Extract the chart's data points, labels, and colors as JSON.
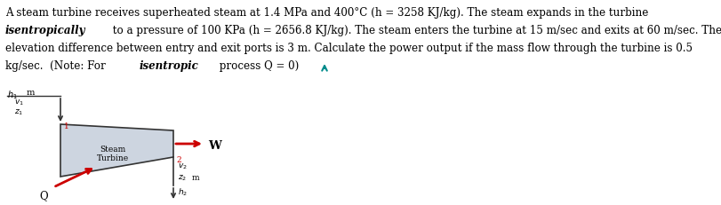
{
  "line1": "A steam turbine receives superheated steam at 1.4 MPa and 400°C (h = 3258 KJ/kg). The steam expands in the turbine",
  "line2_before": "isentropically to a pressure of 100 KPa (h = 2656.8 KJ/kg). The steam enters the turbine at 15 m/sec and exits at 60 m/sec. The",
  "line2_italic": "isentropically",
  "line2_after": " to a pressure of 100 KPa (h = 2656.8 KJ/kg). The steam enters the turbine at 15 m/sec and exits at 60 m/sec. The",
  "line3": "elevation difference between entry and exit ports is 3 m. Calculate the power output if the mass flow through the turbine is 0.5",
  "line4_before": "kg/sec.  (Note: For ",
  "line4_italic": "isentropic",
  "line4_after": " process Q = 0)",
  "bg_color": "#ffffff",
  "turbine_fill": "#cdd5e0",
  "turbine_edge": "#333333",
  "arrow_color": "#cc0000",
  "text_color": "#000000",
  "pipe_color": "#333333",
  "teal_color": "#008B8B",
  "font_size_main": 8.6,
  "font_size_diagram": 7.0,
  "font_size_w": 9.5
}
